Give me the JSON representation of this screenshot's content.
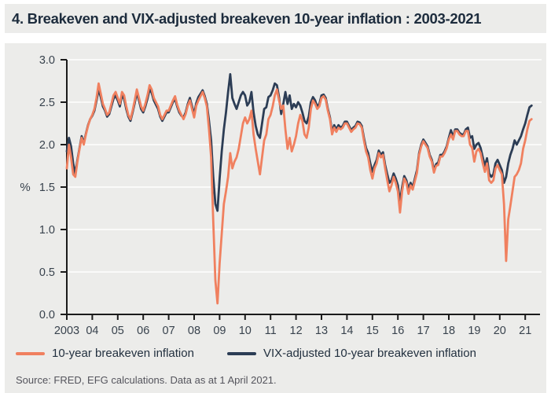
{
  "title": "4. Breakeven and VIX-adjusted breakeven 10-year inflation : 2003-2021",
  "source": "Source: FRED, EFG calculations. Data as at 1 April 2021.",
  "colors": {
    "panel": "#ececea",
    "grid": "#fafaf9",
    "axis": "#1b1b1b",
    "tick_text": "#38424d",
    "title_text": "#1d2c3d",
    "source_text": "#54545c",
    "breakeven": "#f0805f",
    "vix_adjusted": "#2c3d55"
  },
  "legend": {
    "items": [
      {
        "label": "10-year breakeven inflation",
        "color_key": "breakeven"
      },
      {
        "label": "VIX-adjusted 10-year breakeven inflation",
        "color_key": "vix_adjusted"
      }
    ]
  },
  "chart_data": {
    "type": "line",
    "title": "Breakeven and VIX-adjusted breakeven 10-year inflation : 2003-2021",
    "xlabel": "",
    "ylabel": "%",
    "ylim": [
      0.0,
      3.0
    ],
    "ytick_labels": [
      "0.0",
      "0.5",
      "1.0",
      "1.5",
      "2.0",
      "2.5",
      "3.0"
    ],
    "xtick_labels": [
      "2003",
      "04",
      "05",
      "06",
      "07",
      "08",
      "09",
      "10",
      "11",
      "12",
      "13",
      "14",
      "15",
      "16",
      "17",
      "18",
      "19",
      "20",
      "21"
    ],
    "x_start_year": 2003,
    "x_points_per_year": 12,
    "x_end": 2021.25,
    "grid": "horizontal",
    "legend_position": "bottom",
    "series": [
      {
        "name": "10-year breakeven inflation",
        "color_key": "breakeven",
        "values": [
          1.72,
          2.0,
          1.85,
          1.65,
          1.62,
          1.8,
          1.95,
          2.08,
          2.0,
          2.12,
          2.22,
          2.3,
          2.35,
          2.42,
          2.55,
          2.72,
          2.6,
          2.48,
          2.42,
          2.35,
          2.38,
          2.48,
          2.58,
          2.62,
          2.55,
          2.48,
          2.62,
          2.58,
          2.45,
          2.35,
          2.3,
          2.4,
          2.52,
          2.65,
          2.55,
          2.45,
          2.4,
          2.48,
          2.58,
          2.7,
          2.65,
          2.55,
          2.5,
          2.45,
          2.35,
          2.3,
          2.35,
          2.4,
          2.4,
          2.46,
          2.52,
          2.57,
          2.47,
          2.4,
          2.35,
          2.3,
          2.36,
          2.46,
          2.52,
          2.42,
          2.32,
          2.46,
          2.52,
          2.57,
          2.62,
          2.55,
          2.45,
          2.18,
          1.85,
          1.1,
          0.4,
          0.13,
          0.6,
          0.95,
          1.3,
          1.45,
          1.62,
          1.9,
          1.72,
          1.8,
          1.85,
          1.95,
          2.1,
          2.25,
          2.32,
          2.25,
          2.3,
          2.4,
          2.12,
          1.95,
          1.8,
          1.65,
          1.85,
          2.05,
          2.12,
          2.3,
          2.35,
          2.45,
          2.58,
          2.65,
          2.52,
          2.42,
          2.46,
          2.18,
          1.95,
          2.08,
          1.92,
          2.0,
          2.1,
          2.25,
          2.35,
          2.28,
          2.12,
          2.08,
          2.2,
          2.42,
          2.52,
          2.48,
          2.42,
          2.45,
          2.55,
          2.57,
          2.53,
          2.4,
          2.3,
          2.12,
          2.2,
          2.15,
          2.2,
          2.18,
          2.2,
          2.25,
          2.25,
          2.2,
          2.15,
          2.18,
          2.2,
          2.25,
          2.24,
          2.2,
          2.05,
          1.92,
          1.85,
          1.7,
          1.6,
          1.72,
          1.78,
          1.9,
          1.85,
          1.88,
          1.72,
          1.58,
          1.45,
          1.52,
          1.62,
          1.55,
          1.45,
          1.2,
          1.45,
          1.6,
          1.55,
          1.42,
          1.52,
          1.47,
          1.57,
          1.67,
          1.88,
          1.98,
          2.04,
          2.0,
          1.96,
          1.86,
          1.8,
          1.67,
          1.75,
          1.76,
          1.86,
          1.86,
          1.9,
          1.96,
          2.06,
          2.12,
          2.06,
          2.16,
          2.16,
          2.12,
          2.1,
          2.1,
          2.16,
          2.16,
          2.0,
          1.96,
          1.8,
          1.92,
          1.95,
          1.9,
          1.78,
          1.68,
          1.78,
          1.58,
          1.55,
          1.58,
          1.72,
          1.76,
          1.7,
          1.65,
          1.3,
          0.63,
          1.12,
          1.28,
          1.45,
          1.62,
          1.65,
          1.7,
          1.78,
          1.95,
          2.05,
          2.18,
          2.28,
          2.3
        ]
      },
      {
        "name": "VIX-adjusted 10-year breakeven inflation",
        "color_key": "vix_adjusted",
        "values": [
          1.92,
          2.08,
          1.98,
          1.78,
          1.66,
          1.82,
          1.96,
          2.1,
          2.02,
          2.13,
          2.23,
          2.3,
          2.34,
          2.4,
          2.52,
          2.65,
          2.56,
          2.45,
          2.4,
          2.33,
          2.36,
          2.45,
          2.54,
          2.58,
          2.52,
          2.45,
          2.58,
          2.54,
          2.42,
          2.33,
          2.28,
          2.38,
          2.49,
          2.61,
          2.52,
          2.42,
          2.38,
          2.45,
          2.54,
          2.65,
          2.61,
          2.52,
          2.47,
          2.42,
          2.33,
          2.28,
          2.33,
          2.38,
          2.38,
          2.44,
          2.5,
          2.54,
          2.45,
          2.38,
          2.34,
          2.32,
          2.38,
          2.48,
          2.55,
          2.45,
          2.36,
          2.49,
          2.56,
          2.6,
          2.64,
          2.57,
          2.48,
          2.28,
          2.05,
          1.62,
          1.3,
          1.22,
          1.6,
          1.92,
          2.18,
          2.38,
          2.62,
          2.83,
          2.55,
          2.48,
          2.42,
          2.5,
          2.58,
          2.62,
          2.58,
          2.46,
          2.5,
          2.62,
          2.38,
          2.22,
          2.12,
          2.08,
          2.25,
          2.42,
          2.44,
          2.56,
          2.58,
          2.64,
          2.72,
          2.7,
          2.56,
          2.36,
          2.48,
          2.62,
          2.48,
          2.58,
          2.42,
          2.48,
          2.44,
          2.5,
          2.46,
          2.38,
          2.28,
          2.25,
          2.33,
          2.5,
          2.56,
          2.52,
          2.45,
          2.48,
          2.58,
          2.59,
          2.55,
          2.42,
          2.32,
          2.15,
          2.23,
          2.18,
          2.23,
          2.2,
          2.22,
          2.27,
          2.27,
          2.22,
          2.17,
          2.2,
          2.22,
          2.27,
          2.26,
          2.22,
          2.08,
          1.96,
          1.9,
          1.78,
          1.68,
          1.76,
          1.82,
          1.93,
          1.88,
          1.91,
          1.76,
          1.65,
          1.55,
          1.58,
          1.66,
          1.6,
          1.52,
          1.32,
          1.5,
          1.63,
          1.58,
          1.48,
          1.55,
          1.5,
          1.6,
          1.7,
          1.9,
          2.0,
          2.06,
          2.02,
          1.98,
          1.88,
          1.82,
          1.7,
          1.77,
          1.79,
          1.88,
          1.88,
          1.92,
          1.98,
          2.08,
          2.17,
          2.09,
          2.18,
          2.18,
          2.14,
          2.12,
          2.12,
          2.18,
          2.2,
          2.08,
          2.1,
          1.95,
          2.0,
          2.02,
          1.96,
          1.85,
          1.75,
          1.84,
          1.66,
          1.62,
          1.65,
          1.78,
          1.82,
          1.76,
          1.7,
          1.55,
          1.62,
          1.78,
          1.88,
          1.95,
          2.05,
          2.0,
          2.05,
          2.1,
          2.18,
          2.25,
          2.35,
          2.44,
          2.46
        ]
      }
    ]
  }
}
